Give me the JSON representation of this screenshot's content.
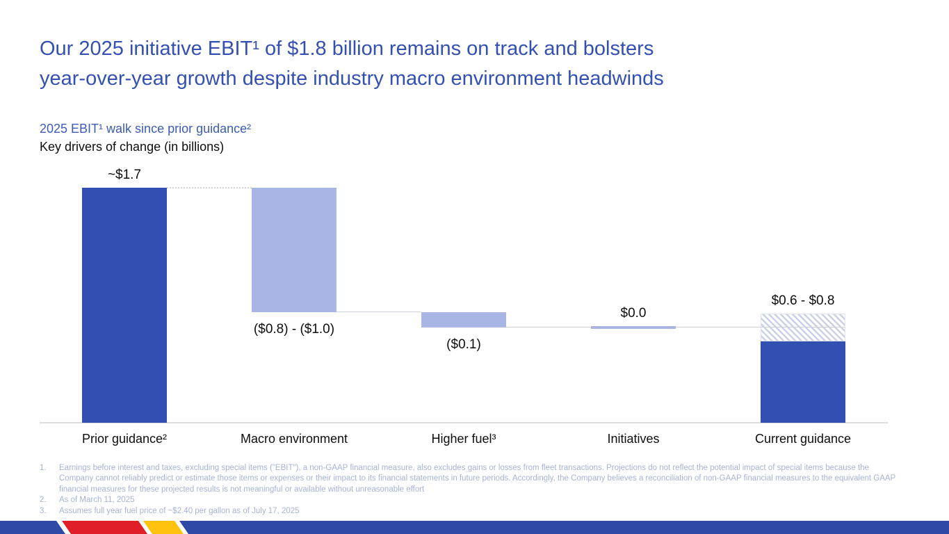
{
  "header": {
    "title_lines": [
      "Our 2025 initiative EBIT¹ of $1.8 billion remains on track and bolsters",
      "year-over-year growth despite industry macro environment headwinds"
    ]
  },
  "chart_header": {
    "subtitle": "2025 EBIT¹ walk since prior guidance²",
    "caption": "Key drivers of change (in billions)"
  },
  "chart_data": {
    "type": "bar",
    "subtype": "waterfall",
    "title": "2025 EBIT walk since prior guidance",
    "unit": "USD billions",
    "ylim": [
      0,
      1.8
    ],
    "grid": false,
    "categories": [
      "Prior guidance²",
      "Macro environment",
      "Higher fuel³",
      "Initiatives",
      "Current guidance"
    ],
    "bars": [
      {
        "value_label": "~$1.7",
        "from": 0,
        "to": 1.7,
        "style": "solid-dark",
        "label_position": "above"
      },
      {
        "value_label": "($0.8) - ($1.0)",
        "from": 1.7,
        "to": 0.8,
        "style": "solid-light",
        "label_position": "below"
      },
      {
        "value_label": "($0.1)",
        "from": 0.8,
        "to": 0.69,
        "style": "solid-light",
        "label_position": "below"
      },
      {
        "value_label": "$0.0",
        "from": 0.69,
        "to": 0.69,
        "style": "thin-light",
        "label_position": "above"
      },
      {
        "value_label": "$0.6 - $0.8",
        "from": 0,
        "to": 0.59,
        "hatch_to": 0.79,
        "style": "solid-dark",
        "label_position": "above"
      }
    ],
    "connectors": [
      {
        "from_bar": 0,
        "to_bar": 1,
        "at_value": 1.7,
        "style": "dotted"
      },
      {
        "from_bar": 1,
        "to_bar": 2,
        "at_value": 0.8,
        "style": "solid"
      },
      {
        "from_bar": 2,
        "to_bar": 3,
        "at_value": 0.69,
        "style": "solid"
      },
      {
        "from_bar": 3,
        "to_bar": 4,
        "at_value": 0.69,
        "style": "solid",
        "extends_across_target": true
      }
    ],
    "colors": {
      "dark_blue": "#3150b2",
      "light_blue": "#a9b5e4",
      "hatch_stripe": "#c9d0e8",
      "connector": "#ccd1da",
      "dotted_connector": "#d4d4d4",
      "axis": "#dcdcdc"
    }
  },
  "footnotes": [
    {
      "num": "1.",
      "text": "Earnings before interest and taxes, excluding special items (\"EBIT\"), a non-GAAP financial measure, also excludes gains or losses from fleet transactions. Projections do not reflect the potential impact of special items because the Company cannot reliably predict or estimate those items or expenses or their impact to its financial statements in future periods. Accordingly, the Company believes a reconciliation of non-GAAP financial measures to the equivalent GAAP financial measures for these projected results is not meaningful or available without unreasonable effort"
    },
    {
      "num": "2.",
      "text": "As of March 11, 2025"
    },
    {
      "num": "3.",
      "text": "Assumes full year fuel price of ~$2.40 per gallon as of July 17, 2025"
    }
  ],
  "footer_band": {
    "colors": {
      "blue": "#2f4aa6",
      "red": "#e01e28",
      "yellow": "#ffc20e",
      "separator": "#ffffff"
    }
  },
  "theme": {
    "title_blue": "#3350b2",
    "subtitle_blue": "#3c5bb8",
    "footnote_color": "#a6b3d8"
  }
}
